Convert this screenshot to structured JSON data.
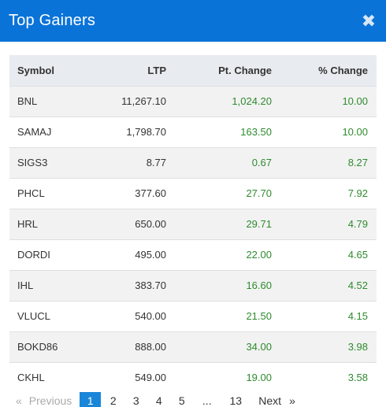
{
  "header": {
    "title": "Top Gainers",
    "close_glyph": "✖"
  },
  "table": {
    "columns": [
      "Symbol",
      "LTP",
      "Pt. Change",
      "% Change"
    ],
    "rows": [
      {
        "symbol": "BNL",
        "ltp": "11,267.10",
        "pt_change": "1,024.20",
        "pct_change": "10.00"
      },
      {
        "symbol": "SAMAJ",
        "ltp": "1,798.70",
        "pt_change": "163.50",
        "pct_change": "10.00"
      },
      {
        "symbol": "SIGS3",
        "ltp": "8.77",
        "pt_change": "0.67",
        "pct_change": "8.27"
      },
      {
        "symbol": "PHCL",
        "ltp": "377.60",
        "pt_change": "27.70",
        "pct_change": "7.92"
      },
      {
        "symbol": "HRL",
        "ltp": "650.00",
        "pt_change": "29.71",
        "pct_change": "4.79"
      },
      {
        "symbol": "DORDI",
        "ltp": "495.00",
        "pt_change": "22.00",
        "pct_change": "4.65"
      },
      {
        "symbol": "IHL",
        "ltp": "383.70",
        "pt_change": "16.60",
        "pct_change": "4.52"
      },
      {
        "symbol": "VLUCL",
        "ltp": "540.00",
        "pt_change": "21.50",
        "pct_change": "4.15"
      },
      {
        "symbol": "BOKD86",
        "ltp": "888.00",
        "pt_change": "34.00",
        "pct_change": "3.98"
      },
      {
        "symbol": "CKHL",
        "ltp": "549.00",
        "pt_change": "19.00",
        "pct_change": "3.58"
      }
    ]
  },
  "pagination": {
    "prev_arrow": "«",
    "prev_label": "Previous",
    "pages": [
      "1",
      "2",
      "3",
      "4",
      "5"
    ],
    "ellipsis": "...",
    "last_page": "13",
    "next_label": "Next",
    "next_arrow": "»",
    "active_page": "1"
  },
  "colors": {
    "header_bg": "#0a73d8",
    "positive": "#2e8b2e",
    "active_page_bg": "#1a86d9"
  }
}
